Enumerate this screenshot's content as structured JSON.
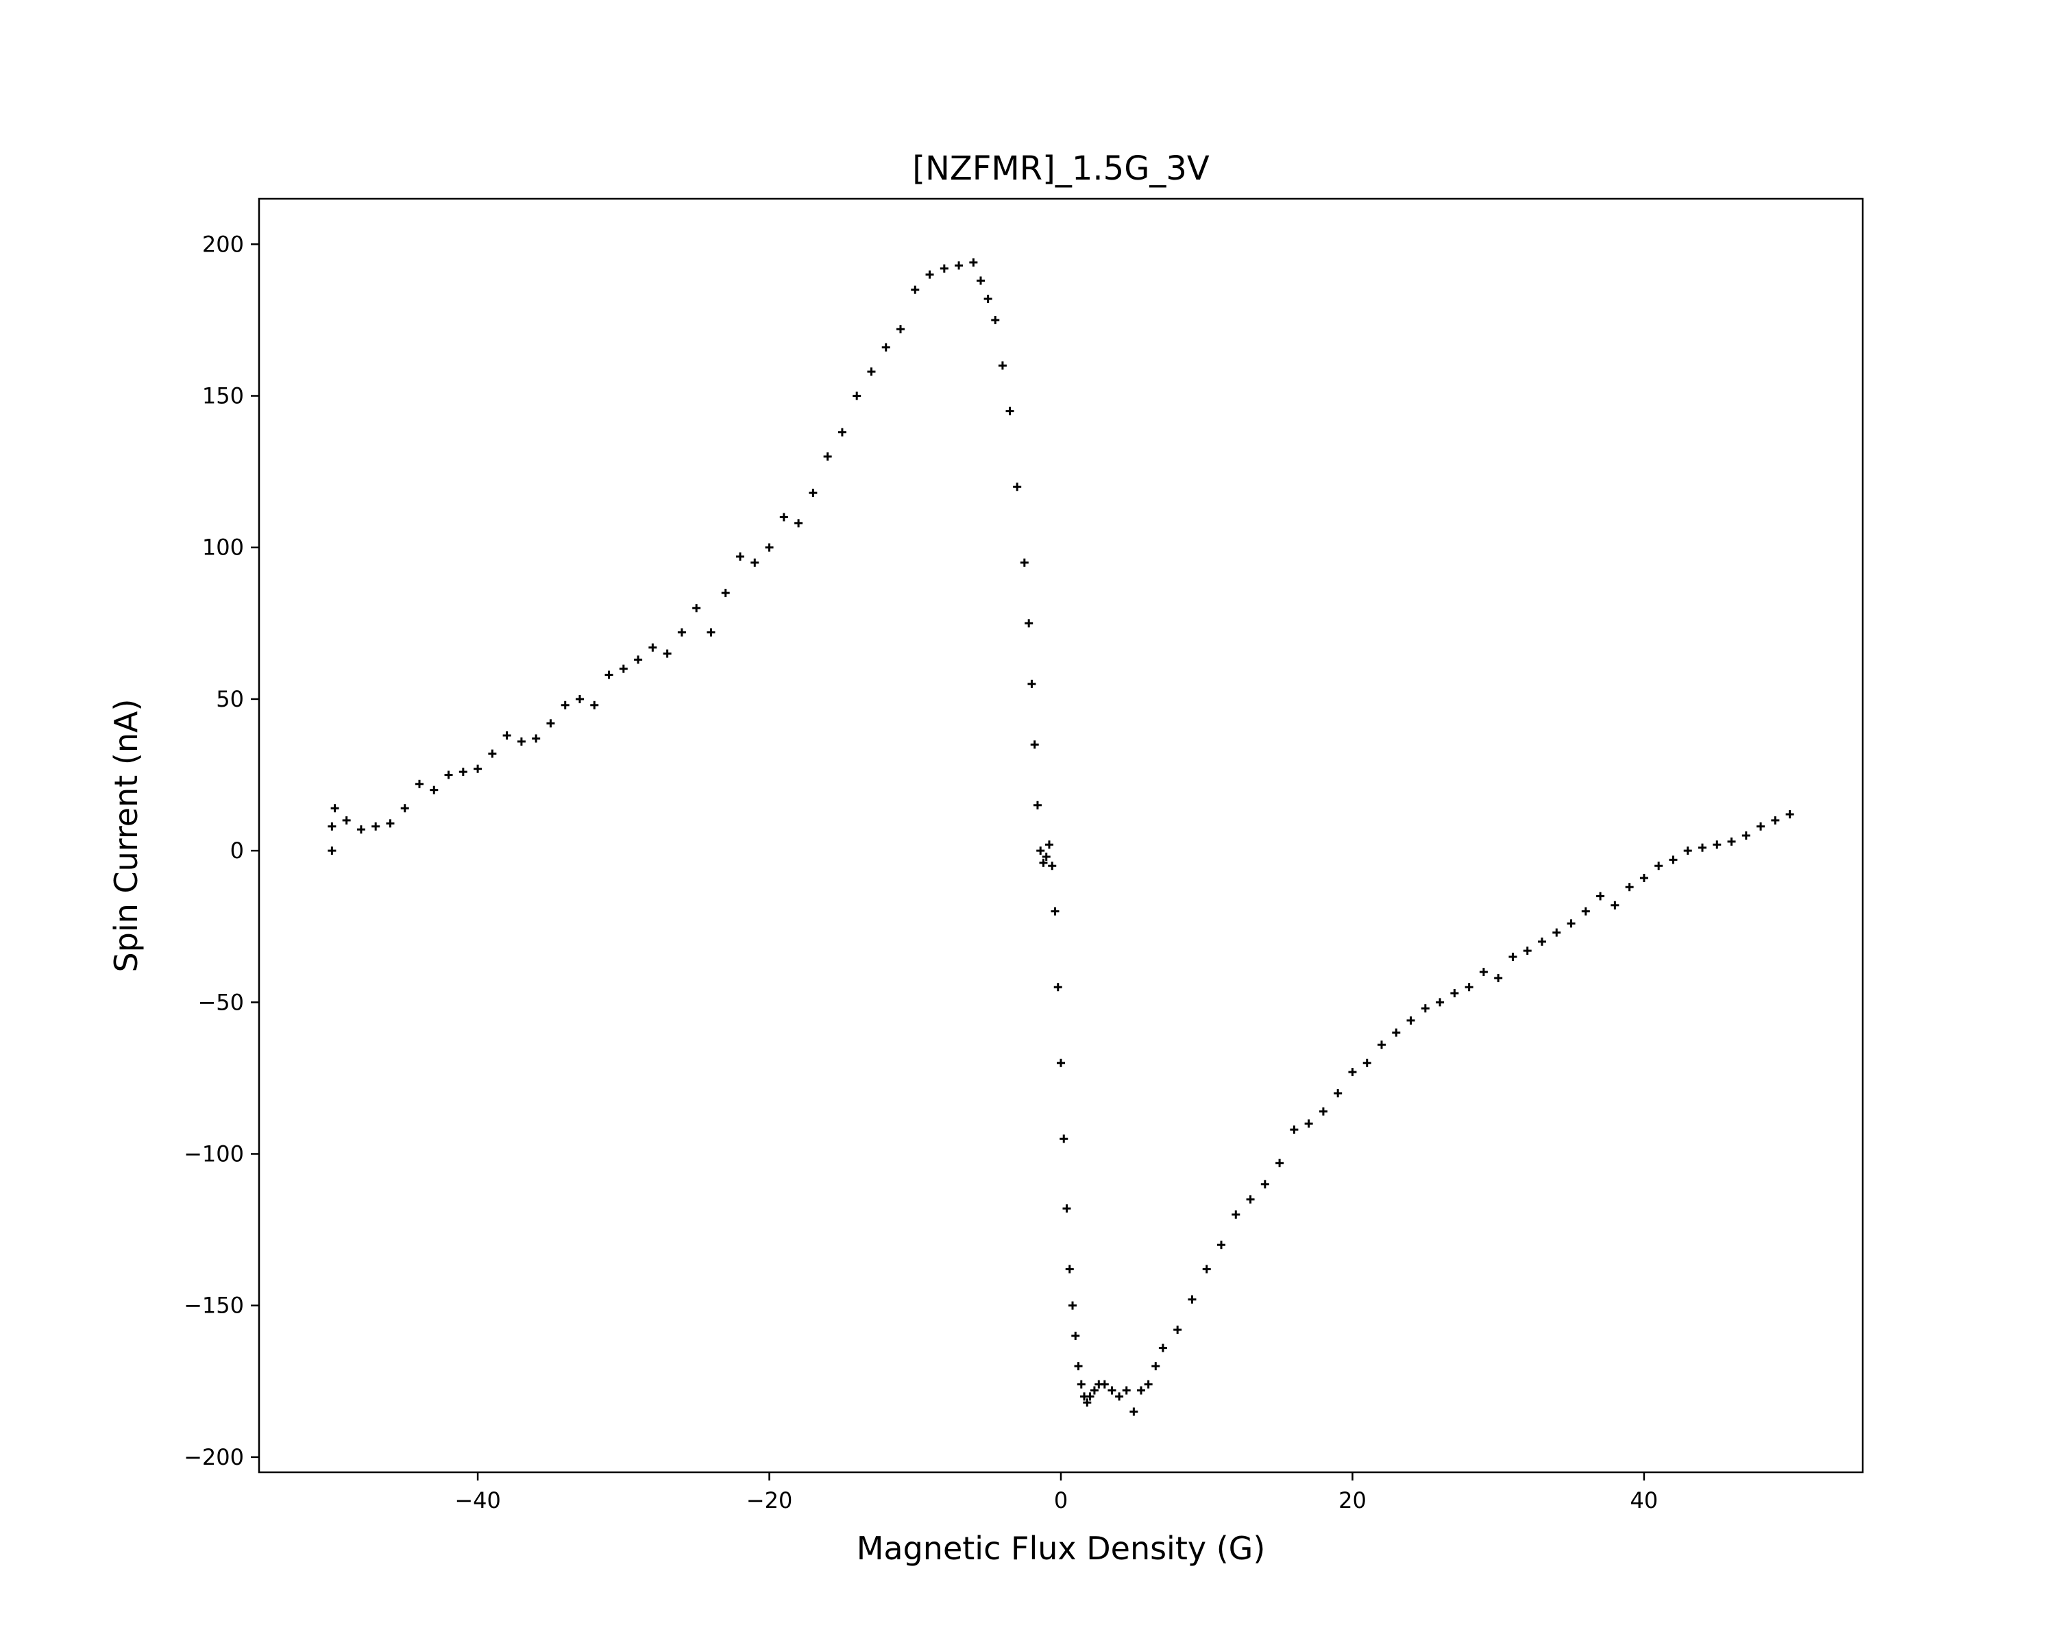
{
  "chart_data": {
    "type": "scatter",
    "title": "[NZFMR]_1.5G_3V",
    "xlabel": "Magnetic Flux Density (G)",
    "ylabel": "Spin Current (nA)",
    "xlim": [
      -55,
      55
    ],
    "ylim": [
      -205,
      215
    ],
    "xticks": [
      -40,
      -20,
      0,
      20,
      40
    ],
    "xtick_labels": [
      "−40",
      "−20",
      "0",
      "20",
      "40"
    ],
    "yticks": [
      -200,
      -150,
      -100,
      -50,
      0,
      50,
      100,
      150,
      200
    ],
    "ytick_labels": [
      "−200",
      "−150",
      "−100",
      "−50",
      "0",
      "50",
      "100",
      "150",
      "200"
    ],
    "grid": false,
    "legend": "none",
    "marker": "+",
    "marker_color": "#000000",
    "series": [
      {
        "x": [
          -50,
          -50,
          -49.8,
          -49,
          -48,
          -47,
          -46,
          -45,
          -44,
          -43,
          -42,
          -41,
          -40,
          -39,
          -38,
          -37,
          -36,
          -35,
          -34,
          -33,
          -32,
          -31,
          -30,
          -29,
          -28,
          -27,
          -26,
          -25,
          -24,
          -23,
          -22,
          -21,
          -20,
          -19,
          -18,
          -17,
          -16,
          -15,
          -14,
          -13,
          -12,
          -11,
          -10,
          -9,
          -8,
          -7,
          -6,
          -5.5,
          -5,
          -4.5,
          -4,
          -3.5,
          -3,
          -2.5,
          -2.2,
          -2,
          -1.8,
          -1.6,
          -1.4,
          -1.2,
          -1,
          -0.8,
          -0.6,
          -0.4,
          -0.2,
          0,
          0.2,
          0.4,
          0.6,
          0.8,
          1,
          1.2,
          1.4,
          1.6,
          1.8,
          2,
          2.3,
          2.6,
          3,
          3.5,
          4,
          4.5,
          5,
          5.5,
          6,
          6.5,
          7,
          8,
          9,
          10,
          11,
          12,
          13,
          14,
          15,
          16,
          17,
          18,
          19,
          20,
          21,
          22,
          23,
          24,
          25,
          26,
          27,
          28,
          29,
          30,
          31,
          32,
          33,
          34,
          35,
          36,
          37,
          38,
          39,
          40,
          41,
          42,
          43,
          44,
          45,
          46,
          47,
          48,
          49,
          50
        ],
        "y": [
          0,
          8,
          14,
          10,
          7,
          8,
          9,
          14,
          22,
          20,
          25,
          26,
          27,
          32,
          38,
          36,
          37,
          42,
          48,
          50,
          48,
          58,
          60,
          63,
          67,
          65,
          72,
          80,
          72,
          85,
          97,
          95,
          100,
          110,
          108,
          118,
          130,
          138,
          150,
          158,
          166,
          172,
          185,
          190,
          192,
          193,
          194,
          188,
          182,
          175,
          160,
          145,
          120,
          95,
          75,
          55,
          35,
          15,
          0,
          -4,
          -2,
          2,
          -5,
          -20,
          -45,
          -70,
          -95,
          -118,
          -138,
          -150,
          -160,
          -170,
          -176,
          -180,
          -182,
          -180,
          -178,
          -176,
          -176,
          -178,
          -180,
          -178,
          -185,
          -178,
          -176,
          -170,
          -164,
          -158,
          -148,
          -138,
          -130,
          -120,
          -115,
          -110,
          -103,
          -92,
          -90,
          -86,
          -80,
          -73,
          -70,
          -64,
          -60,
          -56,
          -52,
          -50,
          -47,
          -45,
          -40,
          -42,
          -35,
          -33,
          -30,
          -27,
          -24,
          -20,
          -15,
          -18,
          -12,
          -9,
          -5,
          -3,
          0,
          1,
          2,
          3,
          5,
          8,
          10,
          12
        ]
      }
    ]
  }
}
